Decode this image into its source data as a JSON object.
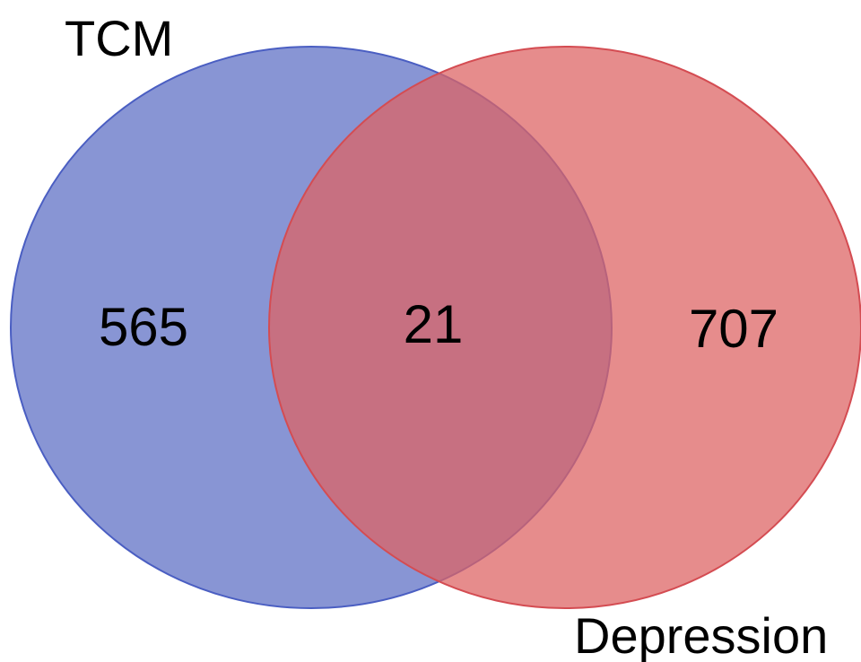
{
  "diagram": {
    "type": "venn",
    "sets": [
      {
        "key": "left",
        "label": "TCM",
        "only_count": "565",
        "fill": "#6677c8",
        "stroke": "#4a5ec2"
      },
      {
        "key": "right",
        "label": "Depression",
        "only_count": "707",
        "fill": "#dd6464",
        "stroke": "#d44c52"
      }
    ],
    "intersection_count": "21",
    "intersection_color": "#a85a77"
  }
}
